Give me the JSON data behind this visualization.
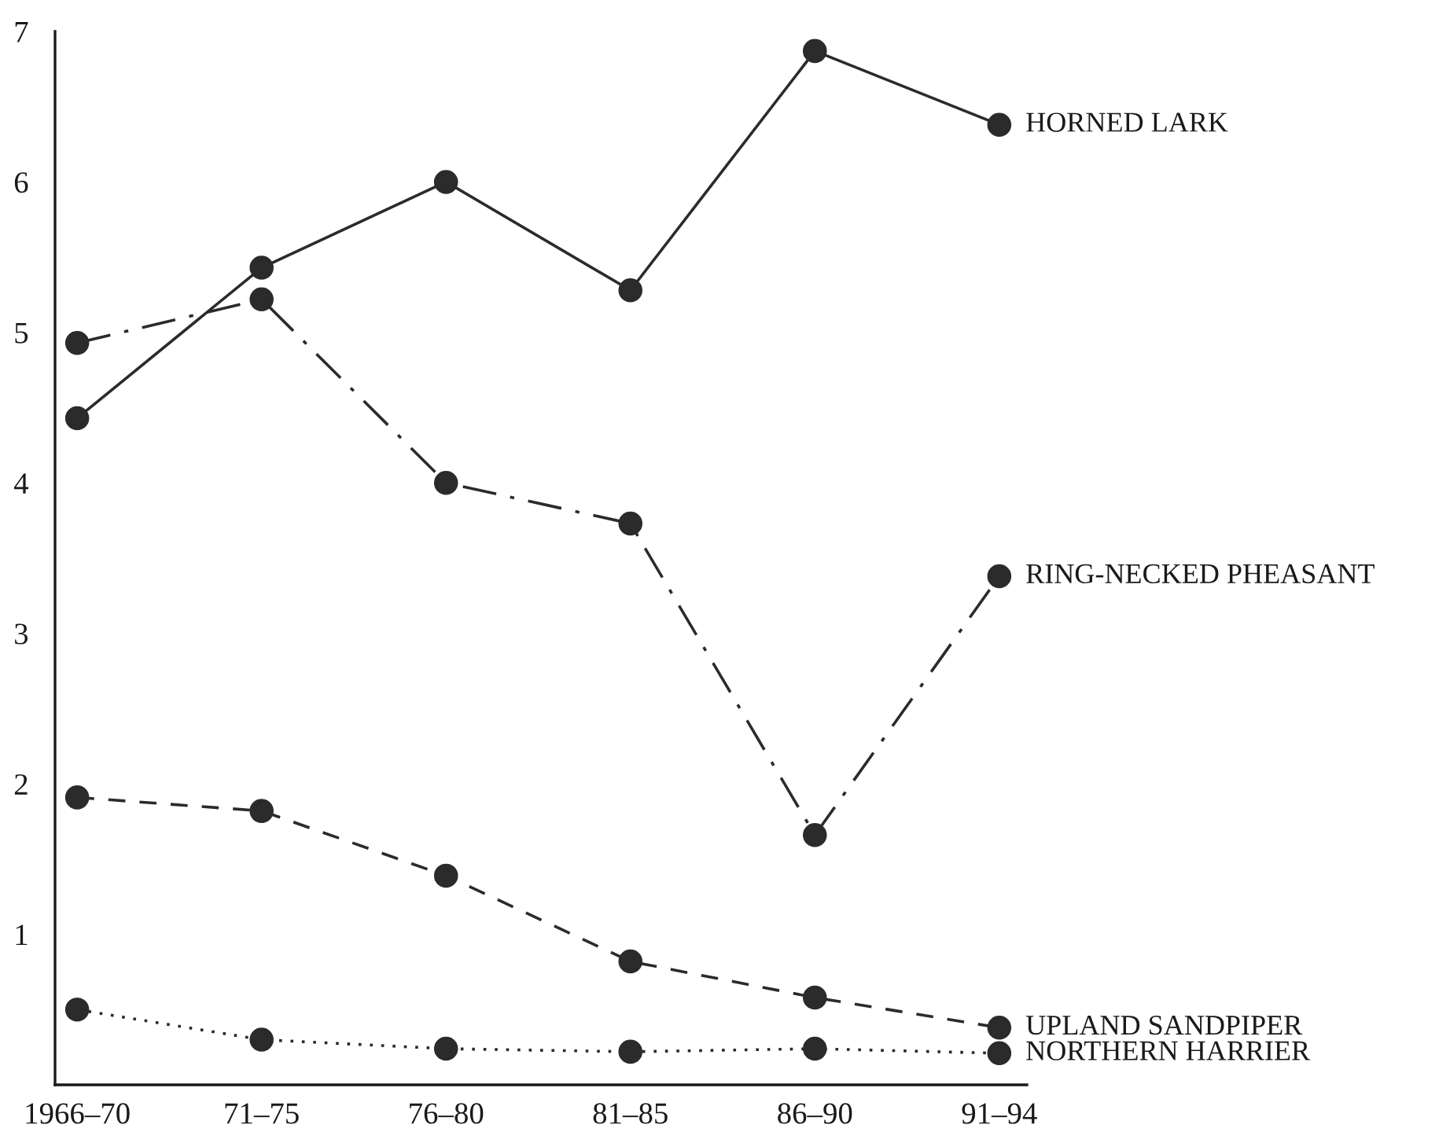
{
  "chart_data": {
    "type": "line",
    "categories": [
      "1966–70",
      "71–75",
      "76–80",
      "81–85",
      "86–90",
      "91–94"
    ],
    "series": [
      {
        "name": "HORNED LARK",
        "color": "#2b2b2b",
        "line_style": "solid",
        "values": [
          4.43,
          5.43,
          6.0,
          5.28,
          6.87,
          6.38
        ]
      },
      {
        "name": "RING-NECKED PHEASANT",
        "color": "#2b2b2b",
        "line_style": "dashdot",
        "values": [
          4.93,
          5.22,
          4.0,
          3.73,
          1.66,
          3.38
        ]
      },
      {
        "name": "UPLAND SANDPIPER",
        "color": "#2b2b2b",
        "line_style": "dashed",
        "values": [
          1.91,
          1.82,
          1.39,
          0.82,
          0.58,
          0.38
        ]
      },
      {
        "name": "NORTHERN HARRIER",
        "color": "#2b2b2b",
        "line_style": "dotted",
        "values": [
          0.5,
          0.3,
          0.24,
          0.22,
          0.24,
          0.21
        ]
      }
    ],
    "ylim": [
      0,
      7
    ],
    "yticks": [
      1,
      2,
      3,
      4,
      5,
      6,
      7
    ],
    "marker": "circle",
    "grid": false,
    "legend": false
  }
}
